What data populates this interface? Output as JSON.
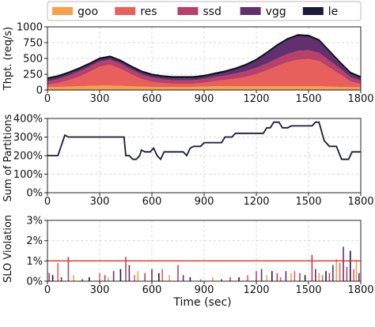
{
  "caption": "",
  "chart_data": [
    {
      "type": "area",
      "stacked": true,
      "ylabel": "Thpt. (req/s)",
      "xlim": [
        0,
        1800
      ],
      "ylim": [
        0,
        1000
      ],
      "xticks": [
        "0",
        "300",
        "600",
        "900",
        "1200",
        "1500",
        "1800"
      ],
      "yticks": [
        "0",
        "250",
        "500",
        "750",
        "1000"
      ],
      "legend_position": "top",
      "grid": true,
      "x": [
        0,
        60,
        120,
        180,
        240,
        300,
        360,
        420,
        480,
        540,
        600,
        660,
        720,
        780,
        840,
        900,
        960,
        1020,
        1080,
        1140,
        1200,
        1260,
        1320,
        1380,
        1440,
        1500,
        1560,
        1620,
        1680,
        1740,
        1800
      ],
      "series": [
        {
          "name": "goo",
          "color": "#f7a24a",
          "values": [
            45,
            50,
            55,
            60,
            65,
            70,
            70,
            65,
            60,
            55,
            50,
            50,
            50,
            50,
            50,
            55,
            60,
            60,
            60,
            60,
            60,
            60,
            60,
            60,
            60,
            60,
            60,
            55,
            50,
            45,
            45
          ]
        },
        {
          "name": "res",
          "color": "#e8605c",
          "values": [
            40,
            60,
            100,
            150,
            220,
            300,
            330,
            270,
            190,
            120,
            80,
            60,
            50,
            50,
            50,
            60,
            80,
            100,
            120,
            150,
            190,
            250,
            320,
            380,
            420,
            430,
            400,
            300,
            200,
            90,
            50
          ]
        },
        {
          "name": "ssd",
          "color": "#b8406a",
          "values": [
            50,
            60,
            70,
            80,
            80,
            80,
            80,
            80,
            75,
            70,
            65,
            60,
            55,
            55,
            55,
            60,
            65,
            70,
            80,
            90,
            100,
            110,
            120,
            130,
            140,
            140,
            130,
            110,
            90,
            70,
            50
          ]
        },
        {
          "name": "vgg",
          "color": "#62306e",
          "values": [
            30,
            30,
            30,
            30,
            30,
            30,
            30,
            30,
            30,
            30,
            30,
            30,
            30,
            30,
            30,
            30,
            35,
            45,
            60,
            80,
            110,
            150,
            190,
            220,
            230,
            210,
            180,
            130,
            80,
            50,
            40
          ]
        },
        {
          "name": "le",
          "color": "#1a1a3a",
          "values": [
            25,
            25,
            25,
            25,
            25,
            25,
            25,
            25,
            25,
            25,
            25,
            25,
            25,
            25,
            25,
            25,
            25,
            25,
            25,
            25,
            25,
            25,
            25,
            25,
            25,
            25,
            25,
            25,
            25,
            25,
            25
          ]
        }
      ]
    },
    {
      "type": "line",
      "ylabel": "Sum of Partitions",
      "xlim": [
        0,
        1800
      ],
      "ylim": [
        0,
        400
      ],
      "xticks": [
        "0",
        "300",
        "600",
        "900",
        "1200",
        "1500",
        "1800"
      ],
      "yticks": [
        "0%",
        "100%",
        "200%",
        "300%",
        "400%"
      ],
      "grid": true,
      "color": "#1a1a3a",
      "points": [
        [
          0,
          200
        ],
        [
          60,
          200
        ],
        [
          100,
          310
        ],
        [
          120,
          300
        ],
        [
          440,
          300
        ],
        [
          450,
          200
        ],
        [
          470,
          200
        ],
        [
          490,
          180
        ],
        [
          510,
          180
        ],
        [
          530,
          200
        ],
        [
          540,
          230
        ],
        [
          560,
          220
        ],
        [
          590,
          220
        ],
        [
          610,
          240
        ],
        [
          630,
          200
        ],
        [
          650,
          180
        ],
        [
          670,
          220
        ],
        [
          780,
          220
        ],
        [
          800,
          200
        ],
        [
          820,
          240
        ],
        [
          840,
          250
        ],
        [
          880,
          250
        ],
        [
          900,
          270
        ],
        [
          1000,
          270
        ],
        [
          1020,
          300
        ],
        [
          1060,
          300
        ],
        [
          1080,
          320
        ],
        [
          1240,
          320
        ],
        [
          1260,
          350
        ],
        [
          1280,
          350
        ],
        [
          1300,
          380
        ],
        [
          1330,
          380
        ],
        [
          1350,
          350
        ],
        [
          1380,
          350
        ],
        [
          1400,
          360
        ],
        [
          1520,
          360
        ],
        [
          1540,
          380
        ],
        [
          1560,
          380
        ],
        [
          1590,
          280
        ],
        [
          1620,
          250
        ],
        [
          1660,
          250
        ],
        [
          1690,
          180
        ],
        [
          1730,
          180
        ],
        [
          1750,
          220
        ],
        [
          1800,
          220
        ]
      ]
    },
    {
      "type": "bar",
      "ylabel": "SLO Violation",
      "xlabel": "Time (sec)",
      "xlim": [
        0,
        1800
      ],
      "ylim": [
        0,
        3
      ],
      "xticks": [
        "0",
        "300",
        "600",
        "900",
        "1200",
        "1500",
        "1800"
      ],
      "yticks": [
        "0%",
        "1%",
        "2%",
        "3%"
      ],
      "grid": true,
      "threshold": {
        "value": 1,
        "color": "#e03030"
      },
      "series_colors": [
        "#f7a24a",
        "#e8605c",
        "#b8406a",
        "#62306e",
        "#1a1a3a"
      ],
      "bars": [
        {
          "x": 10,
          "y": 0.4,
          "s": 2
        },
        {
          "x": 30,
          "y": 0.3,
          "s": 4
        },
        {
          "x": 60,
          "y": 0.9,
          "s": 1
        },
        {
          "x": 80,
          "y": 0.2,
          "s": 3
        },
        {
          "x": 120,
          "y": 1.2,
          "s": 2
        },
        {
          "x": 150,
          "y": 0.3,
          "s": 0
        },
        {
          "x": 200,
          "y": 0.1,
          "s": 3
        },
        {
          "x": 240,
          "y": 0.2,
          "s": 4
        },
        {
          "x": 300,
          "y": 0.4,
          "s": 1
        },
        {
          "x": 330,
          "y": 0.3,
          "s": 2
        },
        {
          "x": 350,
          "y": 0.2,
          "s": 0
        },
        {
          "x": 380,
          "y": 0.5,
          "s": 3
        },
        {
          "x": 420,
          "y": 0.6,
          "s": 4
        },
        {
          "x": 450,
          "y": 1.2,
          "s": 2
        },
        {
          "x": 470,
          "y": 0.8,
          "s": 3
        },
        {
          "x": 500,
          "y": 0.3,
          "s": 1
        },
        {
          "x": 520,
          "y": 0.5,
          "s": 0
        },
        {
          "x": 560,
          "y": 0.4,
          "s": 2
        },
        {
          "x": 600,
          "y": 0.6,
          "s": 3
        },
        {
          "x": 640,
          "y": 0.4,
          "s": 4
        },
        {
          "x": 660,
          "y": 0.6,
          "s": 1
        },
        {
          "x": 700,
          "y": 0.3,
          "s": 0
        },
        {
          "x": 750,
          "y": 0.8,
          "s": 2
        },
        {
          "x": 780,
          "y": 0.3,
          "s": 3
        },
        {
          "x": 820,
          "y": 0.2,
          "s": 4
        },
        {
          "x": 880,
          "y": 0.1,
          "s": 1
        },
        {
          "x": 950,
          "y": 0.2,
          "s": 0
        },
        {
          "x": 1000,
          "y": 0.1,
          "s": 3
        },
        {
          "x": 1050,
          "y": 0.2,
          "s": 2
        },
        {
          "x": 1100,
          "y": 0.2,
          "s": 4
        },
        {
          "x": 1150,
          "y": 0.3,
          "s": 1
        },
        {
          "x": 1200,
          "y": 0.5,
          "s": 2
        },
        {
          "x": 1230,
          "y": 0.6,
          "s": 3
        },
        {
          "x": 1260,
          "y": 0.3,
          "s": 0
        },
        {
          "x": 1290,
          "y": 0.5,
          "s": 4
        },
        {
          "x": 1320,
          "y": 0.4,
          "s": 2
        },
        {
          "x": 1340,
          "y": 0.2,
          "s": 1
        },
        {
          "x": 1370,
          "y": 0.5,
          "s": 3
        },
        {
          "x": 1400,
          "y": 0.4,
          "s": 0
        },
        {
          "x": 1420,
          "y": 0.5,
          "s": 1
        },
        {
          "x": 1450,
          "y": 0.4,
          "s": 2
        },
        {
          "x": 1480,
          "y": 0.3,
          "s": 4
        },
        {
          "x": 1520,
          "y": 1.3,
          "s": 2
        },
        {
          "x": 1540,
          "y": 0.6,
          "s": 3
        },
        {
          "x": 1560,
          "y": 0.4,
          "s": 0
        },
        {
          "x": 1580,
          "y": 0.3,
          "s": 1
        },
        {
          "x": 1600,
          "y": 0.5,
          "s": 4
        },
        {
          "x": 1620,
          "y": 0.4,
          "s": 2
        },
        {
          "x": 1640,
          "y": 0.8,
          "s": 3
        },
        {
          "x": 1660,
          "y": 1.1,
          "s": 0
        },
        {
          "x": 1680,
          "y": 0.9,
          "s": 1
        },
        {
          "x": 1700,
          "y": 1.7,
          "s": 3
        },
        {
          "x": 1720,
          "y": 0.7,
          "s": 2
        },
        {
          "x": 1740,
          "y": 1.5,
          "s": 4
        },
        {
          "x": 1760,
          "y": 0.6,
          "s": 1
        },
        {
          "x": 1775,
          "y": 1.0,
          "s": 0
        },
        {
          "x": 1790,
          "y": 0.4,
          "s": 3
        }
      ]
    }
  ]
}
